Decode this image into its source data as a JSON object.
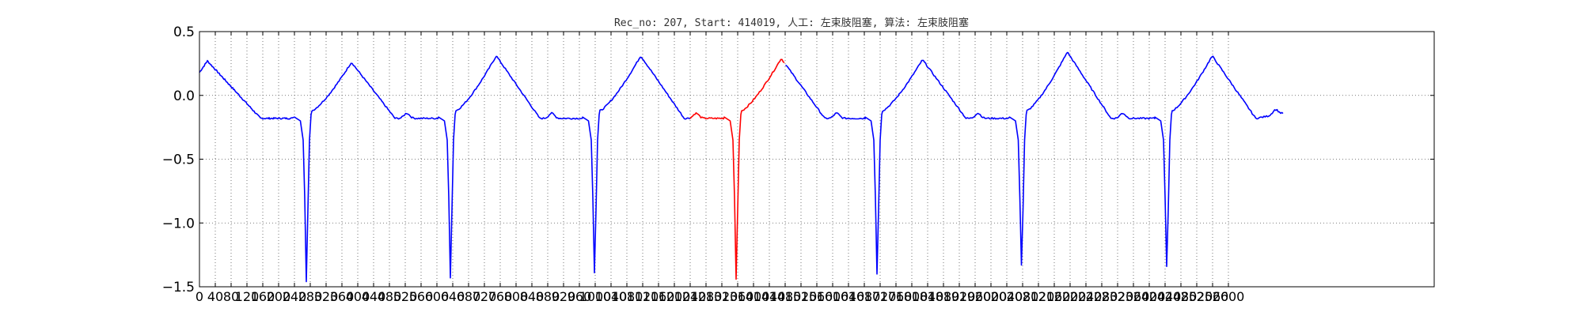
{
  "chart_data": {
    "type": "line",
    "title": "Rec_no: 207, Start: 414019, 人工: 左束肢阻塞, 算法: 左束肢阻塞",
    "xlabel": "",
    "ylabel": "",
    "xlim": [
      0,
      3120
    ],
    "ylim": [
      -1.5,
      0.5
    ],
    "grid": true,
    "grid_style": "dotted",
    "y_ticks": [
      -1.5,
      -1.0,
      -0.5,
      0.0,
      0.5
    ],
    "y_tick_labels": [
      "−1.5",
      "−1.0",
      "−0.5",
      "0.0",
      "0.5"
    ],
    "x_tick_step": 40,
    "x_ticks_last": 2600,
    "x_ticks": [
      0,
      40,
      80,
      120,
      160,
      200,
      240,
      280,
      320,
      360,
      400,
      440,
      480,
      520,
      560,
      600,
      640,
      680,
      720,
      760,
      800,
      840,
      880,
      920,
      960,
      1000,
      1040,
      1080,
      1120,
      1160,
      1200,
      1240,
      1280,
      1320,
      1360,
      1400,
      1440,
      1480,
      1520,
      1560,
      1600,
      1640,
      1680,
      1720,
      1760,
      1800,
      1840,
      1880,
      1920,
      1960,
      2000,
      2040,
      2080,
      2120,
      2160,
      2200,
      2240,
      2280,
      2320,
      2360,
      2400,
      2440,
      2480,
      2520,
      2560,
      2600
    ],
    "x_tick_labels": [
      "0",
      "40",
      "80",
      "120",
      "160",
      "200",
      "240",
      "280",
      "320",
      "360",
      "400",
      "440",
      "480",
      "520",
      "560",
      "600",
      "640",
      "680",
      "720",
      "760",
      "800",
      "840",
      "880",
      "920",
      "960",
      "1000",
      "1040",
      "1080",
      "1120",
      "1160",
      "1200",
      "1240",
      "1280",
      "1320",
      "1360",
      "1400",
      "1440",
      "1480",
      "1520",
      "1560",
      "1600",
      "1640",
      "1680",
      "1720",
      "1760",
      "1800",
      "1840",
      "1880",
      "1920",
      "1960",
      "2000",
      "2040",
      "2080",
      "2120",
      "2160",
      "2200",
      "2240",
      "2280",
      "2320",
      "2360",
      "2400",
      "2440",
      "2480",
      "2520",
      "2560",
      "2600"
    ],
    "series": [
      {
        "color": "#0000ff",
        "x_range": [
          0,
          2740
        ],
        "beat_r_x": [
          270,
          634,
          998,
          1356,
          1712,
          2077,
          2444
        ],
        "beat_r_y": [
          -1.46,
          -1.43,
          -1.39,
          -1.44,
          -1.4,
          -1.33,
          -1.34
        ],
        "beat_t_x": [
          384,
          750,
          1115,
          1470,
          1827,
          2193,
          2559
        ],
        "beat_t_y": [
          0.26,
          0.31,
          0.31,
          0.29,
          0.28,
          0.34,
          0.31
        ],
        "start_y": 0.18,
        "end_y": -0.14
      },
      {
        "color": "#ff0000",
        "x_range": [
          1240,
          1480
        ],
        "note": "highlighted segment"
      }
    ]
  }
}
